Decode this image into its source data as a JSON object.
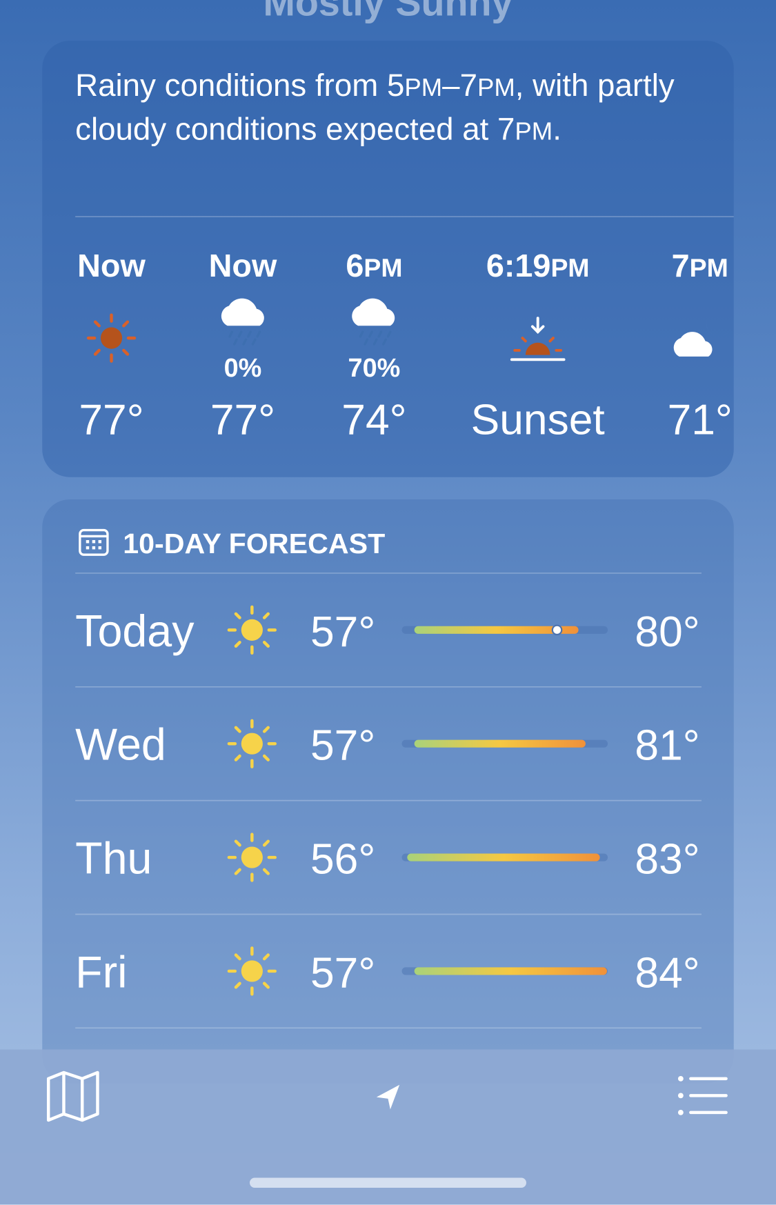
{
  "header": {
    "condition": "Mostly Sunny"
  },
  "hourly": {
    "summary": "Rainy conditions from 5PM–7PM, with partly cloudy conditions expected at 7PM.",
    "items": [
      {
        "time": "Now",
        "temp": "77°"
      },
      {
        "time": "Now",
        "precip": "0%",
        "temp": "77°"
      },
      {
        "time": "6PM",
        "precip": "70%",
        "temp": "74°"
      },
      {
        "time": "6:19PM",
        "temp": "Sunset"
      },
      {
        "time": "7PM",
        "temp": "71°"
      }
    ]
  },
  "forecast": {
    "title": "10-DAY FORECAST",
    "days": [
      {
        "day": "Today",
        "low": "57°",
        "high": "80°"
      },
      {
        "day": "Wed",
        "low": "57°",
        "high": "81°"
      },
      {
        "day": "Thu",
        "low": "56°",
        "high": "83°"
      },
      {
        "day": "Fri",
        "low": "57°",
        "high": "84°"
      }
    ]
  }
}
